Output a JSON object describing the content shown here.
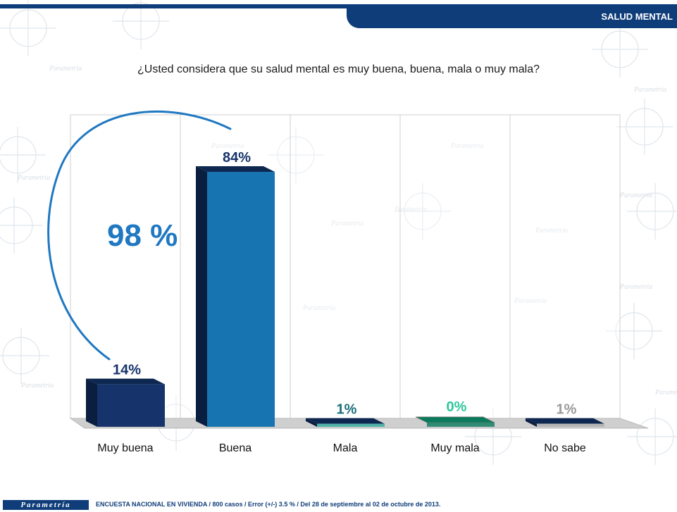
{
  "header": {
    "section": "SALUD MENTAL"
  },
  "question": "¿Usted considera que su salud mental es muy buena, buena, mala o muy mala?",
  "annotation": {
    "total": "98 %"
  },
  "footer": {
    "logo": "Parametría",
    "note": "ENCUESTA NACIONAL EN VIVIENDA / 800 casos / Error (+/-) 3.5 % / Del 28 de septiembre al 02 de octubre de 2013."
  },
  "watermark_text": "Parametría",
  "chart_data": {
    "type": "bar",
    "categories": [
      "Muy buena",
      "Buena",
      "Mala",
      "Muy mala",
      "No sabe"
    ],
    "values": [
      14,
      84,
      1,
      0,
      1
    ],
    "value_labels": [
      "14%",
      "84%",
      "1%",
      "0%",
      "1%"
    ],
    "ylim": [
      0,
      100
    ],
    "grid": true,
    "legend": "none",
    "colors": {
      "bars": [
        "#16336b",
        "#1874b0",
        "#4fb3a8",
        "#0a7a5c",
        "#b5b5b5"
      ],
      "labels": [
        "#16336b",
        "#16336b",
        "#1b6f7a",
        "#2bc79a",
        "#9a9a9a"
      ],
      "accent": "#1f78c1"
    }
  }
}
